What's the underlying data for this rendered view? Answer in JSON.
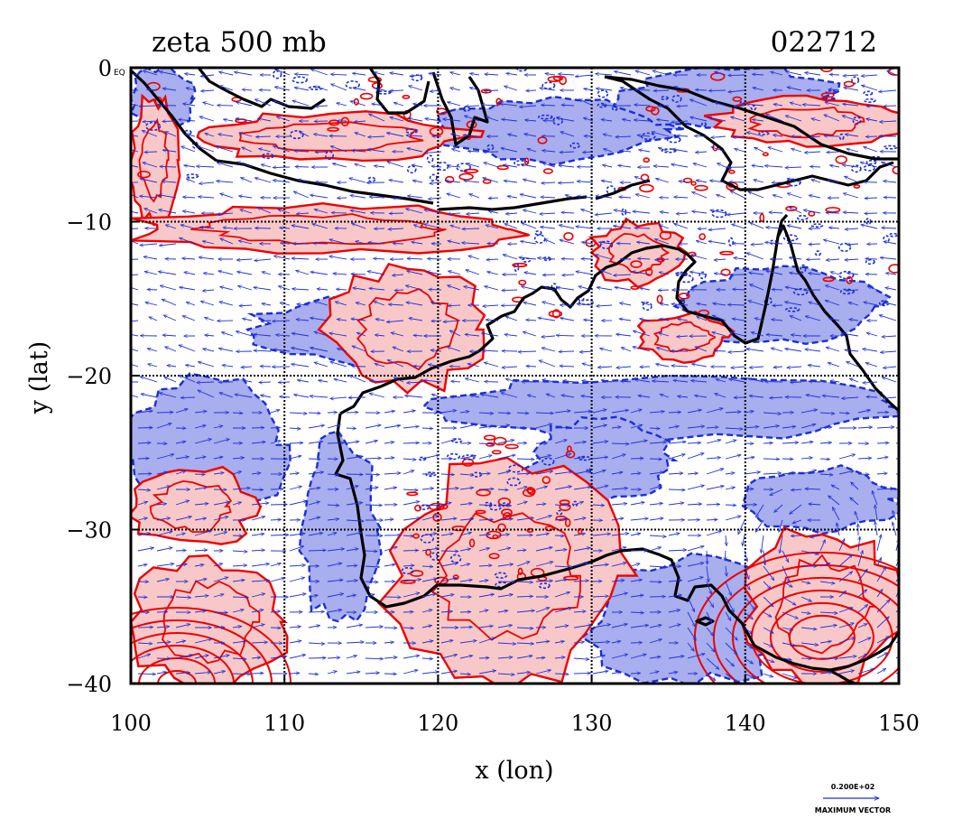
{
  "title": {
    "left": "zeta 500 mb",
    "right": "022712"
  },
  "axes": {
    "xlabel": "x (lon)",
    "ylabel": "y (lat)",
    "x_range": [
      100,
      150
    ],
    "y_range": [
      -40,
      0
    ],
    "x_ticks": [
      "100",
      "110",
      "120",
      "130",
      "140",
      "150"
    ],
    "y_ticks": [
      "0",
      "−10",
      "−20",
      "−30",
      "−40"
    ],
    "y_top_suffix": "EQ",
    "grid": "dotted black lines every 10 degrees"
  },
  "legend": {
    "vector_scale": "0.200E+02",
    "vector_label": "MAXIMUM VECTOR"
  },
  "colors": {
    "positive_contour": "#ee0000",
    "positive_fill": "#f8c8c8",
    "negative_contour": "#1a2fd6",
    "negative_fill": "#a8aeee",
    "coastline": "#000000",
    "wind_vectors": "#2030d8"
  },
  "chart_data": {
    "type": "map",
    "field": "relative vorticity (zeta) at 500 mb with wind vectors",
    "projection": "lat-lon",
    "lon_range": [
      100,
      150
    ],
    "lat_range": [
      -40,
      0
    ],
    "positive_regions": [
      {
        "lon": [
          100,
          103
        ],
        "lat": [
          -10,
          -2
        ]
      },
      {
        "lon": [
          104,
          122
        ],
        "lat": [
          -6,
          -3
        ]
      },
      {
        "lon": [
          100,
          125
        ],
        "lat": [
          -12,
          -9
        ]
      },
      {
        "lon": [
          113,
          123
        ],
        "lat": [
          -21,
          -13
        ]
      },
      {
        "lon": [
          100,
          108
        ],
        "lat": [
          -31,
          -26
        ]
      },
      {
        "lon": [
          100,
          110
        ],
        "lat": [
          -40,
          -32
        ]
      },
      {
        "lon": [
          117,
          132
        ],
        "lat": [
          -40,
          -26
        ]
      },
      {
        "lon": [
          130,
          136
        ],
        "lat": [
          -14,
          -10
        ]
      },
      {
        "lon": [
          133,
          139
        ],
        "lat": [
          -19,
          -16
        ]
      },
      {
        "lon": [
          140,
          150
        ],
        "lat": [
          -40,
          -30
        ]
      },
      {
        "lon": [
          138,
          150
        ],
        "lat": [
          -5,
          -2
        ]
      }
    ],
    "negative_regions": [
      {
        "lon": [
          100,
          104
        ],
        "lat": [
          -4,
          0
        ]
      },
      {
        "lon": [
          120,
          135
        ],
        "lat": [
          -6,
          -2
        ]
      },
      {
        "lon": [
          132,
          146
        ],
        "lat": [
          -4,
          0
        ]
      },
      {
        "lon": [
          108,
          121
        ],
        "lat": [
          -19,
          -15
        ]
      },
      {
        "lon": [
          100,
          110
        ],
        "lat": [
          -29,
          -20
        ]
      },
      {
        "lon": [
          111,
          116
        ],
        "lat": [
          -36,
          -24
        ]
      },
      {
        "lon": [
          120,
          150
        ],
        "lat": [
          -24,
          -20
        ]
      },
      {
        "lon": [
          126,
          135
        ],
        "lat": [
          -28,
          -23
        ]
      },
      {
        "lon": [
          130,
          143
        ],
        "lat": [
          -40,
          -32
        ]
      },
      {
        "lon": [
          136,
          149
        ],
        "lat": [
          -18,
          -13
        ]
      },
      {
        "lon": [
          140,
          150
        ],
        "lat": [
          -30,
          -26
        ]
      }
    ]
  }
}
